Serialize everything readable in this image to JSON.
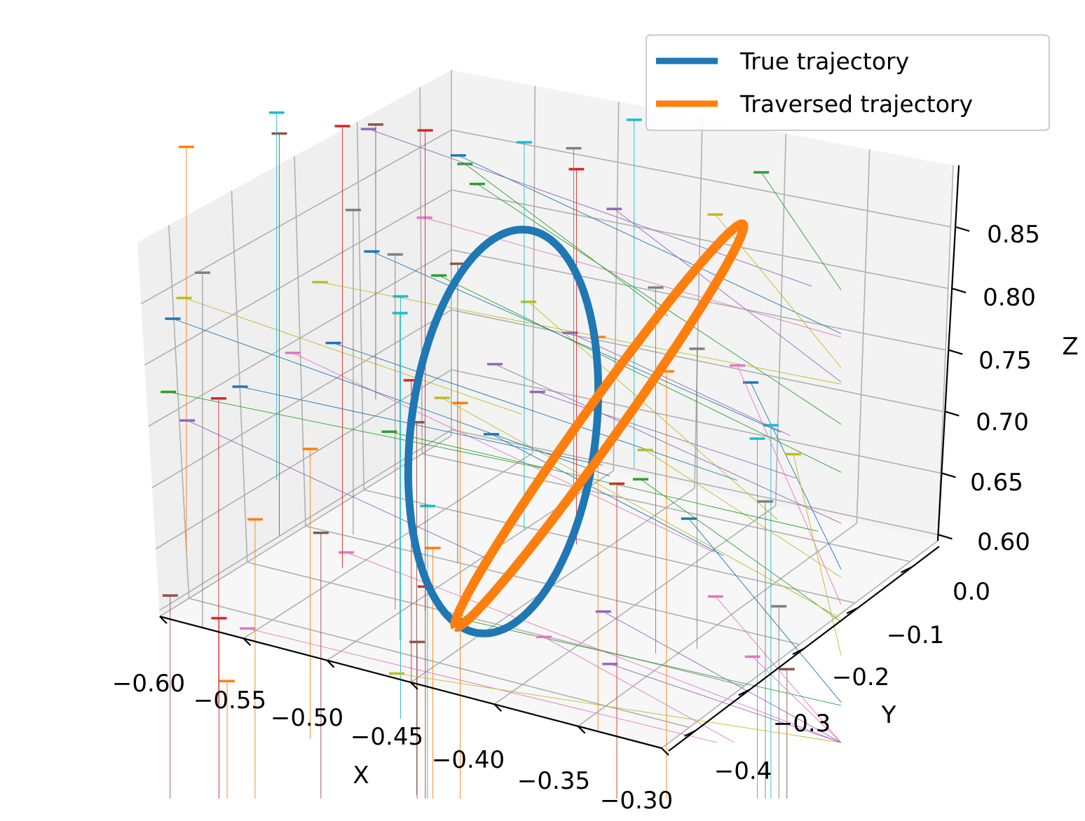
{
  "chart_data": {
    "type": "line",
    "title": "",
    "xlabel": "X",
    "ylabel": "Y",
    "zlabel": "Z",
    "xlim": [
      -0.6,
      -0.3
    ],
    "ylim": [
      -0.45,
      0.05
    ],
    "zlim": [
      0.6,
      0.87
    ],
    "x_ticks": [
      "−0.60",
      "−0.55",
      "−0.50",
      "−0.45",
      "−0.40",
      "−0.35",
      "−0.30"
    ],
    "y_ticks": [
      "0.0",
      "−0.1",
      "−0.2",
      "−0.3",
      "−0.4"
    ],
    "z_ticks": [
      "0.60",
      "0.65",
      "0.70",
      "0.75",
      "0.80",
      "0.85"
    ],
    "grid": true,
    "legend_position": "top-right",
    "series": [
      {
        "name": "True trajectory",
        "color": "#1f77b4",
        "description_points": [
          {
            "x": -0.45,
            "y": -0.2,
            "z": 0.84
          },
          {
            "x": -0.45,
            "y": -0.08,
            "z": 0.8
          },
          {
            "x": -0.45,
            "y": -0.03,
            "z": 0.73
          },
          {
            "x": -0.45,
            "y": -0.08,
            "z": 0.66
          },
          {
            "x": -0.45,
            "y": -0.2,
            "z": 0.62
          },
          {
            "x": -0.45,
            "y": -0.32,
            "z": 0.66
          },
          {
            "x": -0.45,
            "y": -0.37,
            "z": 0.73
          },
          {
            "x": -0.45,
            "y": -0.32,
            "z": 0.8
          }
        ]
      },
      {
        "name": "Traversed trajectory",
        "color": "#ff7f0e",
        "description_points": [
          {
            "x": -0.47,
            "y": -0.33,
            "z": 0.62
          },
          {
            "x": -0.43,
            "y": -0.24,
            "z": 0.7
          },
          {
            "x": -0.38,
            "y": -0.12,
            "z": 0.78
          },
          {
            "x": -0.33,
            "y": -0.02,
            "z": 0.85
          },
          {
            "x": -0.36,
            "y": -0.08,
            "z": 0.78
          },
          {
            "x": -0.41,
            "y": -0.2,
            "z": 0.7
          },
          {
            "x": -0.45,
            "y": -0.3,
            "z": 0.63
          }
        ]
      }
    ],
    "projection_markers": {
      "colors": [
        "#1f77b4",
        "#ff7f0e",
        "#2ca02c",
        "#d62728",
        "#9467bd",
        "#8c564b",
        "#e377c2",
        "#7f7f7f",
        "#bcbd22",
        "#17becf"
      ],
      "count": 80
    }
  }
}
